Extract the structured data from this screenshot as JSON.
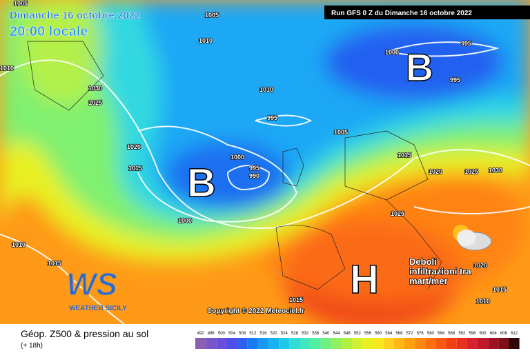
{
  "header": {
    "date": "Dimanche 16 octobre 2022",
    "time": "20:00 locale",
    "run": "Run GFS 0 Z du Dimanche 16 octobre 2022"
  },
  "isobar_labels": [
    "1005",
    "1005",
    "1010",
    "1010",
    "1030",
    "1025",
    "1010",
    "995",
    "1000",
    "995",
    "995",
    "1005",
    "1020",
    "1015",
    "1000",
    "995",
    "990",
    "1015",
    "1020",
    "1025",
    "1030",
    "1000",
    "1025",
    "1010",
    "1015",
    "1020",
    "1015",
    "1010",
    "1015"
  ],
  "pressure_centers": [
    "B",
    "B",
    "H"
  ],
  "annotation": "Deboli infiltrazioni tra mart/mer",
  "logo": {
    "initials": "WS",
    "name": "WEATHER SICILY"
  },
  "copyright": "Copyright © 2022 Meteociel.fr",
  "legend": {
    "title": "Géop. Z500 & pression au sol",
    "subtitle": "(+ 18h)",
    "scale": [
      492,
      496,
      500,
      504,
      508,
      512,
      516,
      520,
      524,
      528,
      532,
      536,
      540,
      544,
      548,
      552,
      556,
      560,
      564,
      568,
      572,
      576,
      580,
      584,
      588,
      592,
      596,
      600,
      604,
      608,
      612
    ],
    "colors": [
      "#8a5fb0",
      "#7a55c8",
      "#6a4fdd",
      "#4e4fe8",
      "#3060f0",
      "#1a7cf5",
      "#1a98f5",
      "#1ab2f0",
      "#20c8e8",
      "#30dcd8",
      "#40e8c0",
      "#50f0a0",
      "#70f080",
      "#90f060",
      "#b0f040",
      "#d0f030",
      "#e8f020",
      "#f8e820",
      "#ffd020",
      "#ffb818",
      "#ffa010",
      "#ff8810",
      "#ff7010",
      "#f85810",
      "#f04010",
      "#e83020",
      "#d82030",
      "#c01828",
      "#a01020",
      "#801018",
      "#300808"
    ]
  }
}
